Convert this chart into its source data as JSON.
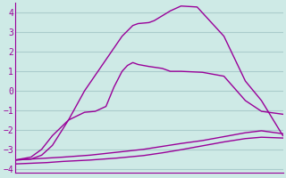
{
  "bg_color": "#ceeae6",
  "line_color": "#990099",
  "grid_color": "#aacccc",
  "ylim": [
    -4.2,
    4.5
  ],
  "yticks": [
    -4,
    -3,
    -2,
    -1,
    0,
    1,
    2,
    3,
    4
  ],
  "line1_x": [
    0.0,
    0.12,
    0.18,
    0.28,
    0.38,
    0.48,
    0.55,
    0.62,
    0.7,
    0.78,
    0.86,
    0.92,
    1.0
  ],
  "line1_y": [
    -3.55,
    -3.45,
    -3.4,
    -3.3,
    -3.15,
    -3.0,
    -2.85,
    -2.7,
    -2.55,
    -2.35,
    -2.15,
    -2.05,
    -2.2
  ],
  "line2_x": [
    0.0,
    0.12,
    0.18,
    0.28,
    0.38,
    0.48,
    0.55,
    0.62,
    0.7,
    0.78,
    0.86,
    0.92,
    1.0
  ],
  "line2_y": [
    -3.75,
    -3.68,
    -3.62,
    -3.55,
    -3.45,
    -3.32,
    -3.18,
    -3.02,
    -2.82,
    -2.62,
    -2.45,
    -2.38,
    -2.42
  ],
  "line3_x": [
    0.0,
    0.06,
    0.1,
    0.14,
    0.2,
    0.26,
    0.3,
    0.34,
    0.37,
    0.4,
    0.42,
    0.44,
    0.46,
    0.5,
    0.55,
    0.58,
    0.62,
    0.7,
    0.78,
    0.86,
    0.92,
    1.0
  ],
  "line3_y": [
    -3.55,
    -3.4,
    -3.0,
    -2.3,
    -1.5,
    -1.1,
    -1.05,
    -0.8,
    0.2,
    1.0,
    1.3,
    1.45,
    1.35,
    1.25,
    1.15,
    1.0,
    1.0,
    0.95,
    0.75,
    -0.5,
    -1.05,
    -1.2
  ],
  "line4_x": [
    0.0,
    0.06,
    0.1,
    0.14,
    0.2,
    0.26,
    0.32,
    0.36,
    0.4,
    0.44,
    0.46,
    0.5,
    0.52,
    0.55,
    0.58,
    0.62,
    0.68,
    0.7,
    0.78,
    0.86,
    0.92,
    1.0
  ],
  "line4_y": [
    -3.55,
    -3.5,
    -3.3,
    -2.8,
    -1.5,
    0.0,
    1.2,
    2.0,
    2.8,
    3.35,
    3.45,
    3.5,
    3.6,
    3.85,
    4.1,
    4.35,
    4.3,
    4.0,
    2.8,
    0.5,
    -0.5,
    -2.3
  ],
  "title_fontsize": 8.5,
  "tick_fontsize": 7.0,
  "figsize": [
    3.2,
    2.0
  ],
  "dpi": 100
}
